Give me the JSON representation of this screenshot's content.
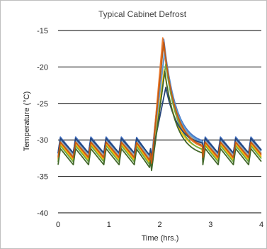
{
  "chart_data": {
    "type": "line",
    "title": "Typical Cabinet Defrost",
    "xlabel": "Time (hrs.)",
    "ylabel": "Temperature (°C)",
    "xlim": [
      0,
      4
    ],
    "ylim": [
      -40,
      -15
    ],
    "xticks": [
      0,
      1,
      2,
      3,
      4
    ],
    "yticks": [
      -15,
      -20,
      -25,
      -30,
      -35,
      -40
    ],
    "grid": "horizontal",
    "legend": "none",
    "cycle_period_hrs": 0.3,
    "series": [
      {
        "color": "#4472C4",
        "cycle_low": -31.8,
        "cycle_high": -29.6,
        "pre_min": -32.6,
        "peak": -16.2,
        "peak_time": 2.08
      },
      {
        "color": "#ED7D31",
        "cycle_low": -32.6,
        "cycle_high": -30.4,
        "pre_min": -33.4,
        "peak": -16.0,
        "peak_time": 2.06
      },
      {
        "color": "#A5A5A5",
        "cycle_low": -32.2,
        "cycle_high": -30.0,
        "pre_min": -33.0,
        "peak": -18.0,
        "peak_time": 2.1
      },
      {
        "color": "#FFC000",
        "cycle_low": -32.8,
        "cycle_high": -30.6,
        "pre_min": -33.6,
        "peak": -20.4,
        "peak_time": 2.09
      },
      {
        "color": "#5B9BD5",
        "cycle_low": -31.9,
        "cycle_high": -29.9,
        "pre_min": -32.6,
        "peak": -17.6,
        "peak_time": 2.1
      },
      {
        "color": "#70AD47",
        "cycle_low": -33.0,
        "cycle_high": -30.8,
        "pre_min": -33.8,
        "peak": -19.6,
        "peak_time": 2.12
      },
      {
        "color": "#264478",
        "cycle_low": -31.8,
        "cycle_high": -29.8,
        "pre_min": -32.4,
        "peak": -22.8,
        "peak_time": 2.12
      },
      {
        "color": "#43682B",
        "cycle_low": -33.4,
        "cycle_high": -31.2,
        "pre_min": -34.2,
        "peak": -20.6,
        "peak_time": 2.1
      },
      {
        "color": "#C55A11",
        "cycle_low": -32.4,
        "cycle_high": -30.3,
        "pre_min": -33.2,
        "peak": -16.6,
        "peak_time": 2.08
      }
    ]
  }
}
